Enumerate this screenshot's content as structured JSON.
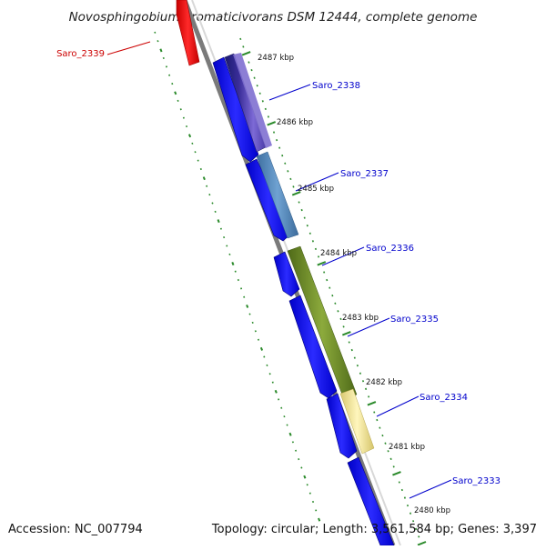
{
  "title": "Novosphingobium aromaticivorans DSM 12444, complete genome",
  "footer": {
    "accession": "Accession: NC_007794",
    "summary": "Topology: circular; Length: 3,561,584 bp; Genes: 3,397"
  },
  "colors": {
    "reverse_gene": "#e00000",
    "forward_gene": "#1010e8",
    "label_blue": "#0000cc",
    "label_red": "#cc0000",
    "tick_green": "#2a8a2a",
    "backbone": "#888888"
  },
  "ticks": [
    "2487 kbp",
    "2486 kbp",
    "2485 kbp",
    "2484 kbp",
    "2483 kbp",
    "2482 kbp",
    "2481 kbp",
    "2480 kbp"
  ],
  "genes": [
    {
      "label": "Saro_2339",
      "strand": "reverse"
    },
    {
      "label": "Saro_2338",
      "strand": "forward"
    },
    {
      "label": "Saro_2337",
      "strand": "forward"
    },
    {
      "label": "Saro_2336",
      "strand": "forward"
    },
    {
      "label": "Saro_2335",
      "strand": "forward"
    },
    {
      "label": "Saro_2334",
      "strand": "forward"
    },
    {
      "label": "Saro_2333",
      "strand": "forward"
    }
  ]
}
